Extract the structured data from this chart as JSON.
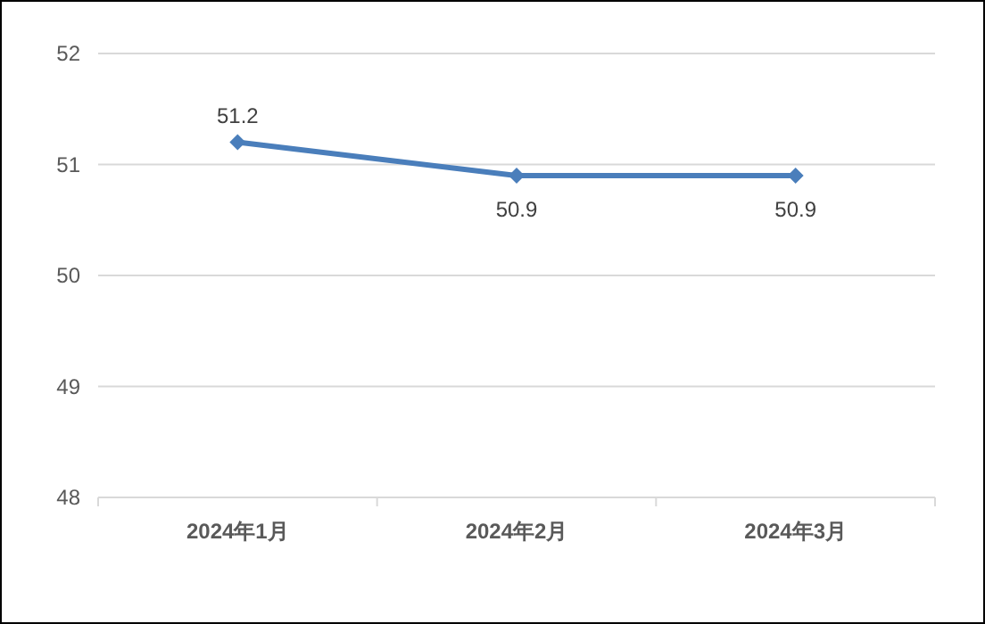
{
  "chart_data": {
    "type": "line",
    "categories": [
      "2024年1月",
      "2024年2月",
      "2024年3月"
    ],
    "values": [
      51.2,
      50.9,
      50.9
    ],
    "color": "#4a7ebb",
    "ylim": [
      48,
      52
    ],
    "yticks": [
      48,
      49,
      50,
      51,
      52
    ],
    "grid": "y",
    "marker": "diamond",
    "data_labels": true
  }
}
